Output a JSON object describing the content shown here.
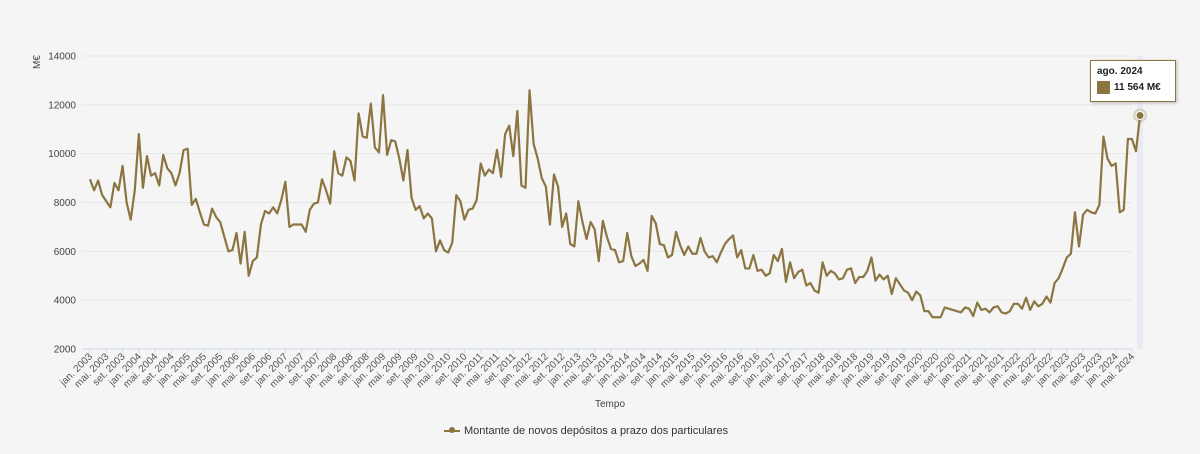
{
  "chart_data": {
    "type": "line",
    "ylabel": "M€",
    "xlabel": "Tempo",
    "ylim": [
      2000,
      14000
    ],
    "yticks": [
      2000,
      4000,
      6000,
      8000,
      10000,
      12000,
      14000
    ],
    "ytick_labels": [
      "2000",
      "4000",
      "6000",
      "8000",
      "10000",
      "12000",
      "14000"
    ],
    "x_start": "2003-01",
    "x_end": "2024-08",
    "xtick_labels": [
      "jan. 2003",
      "mai. 2003",
      "set. 2003",
      "jan. 2004",
      "mai. 2004",
      "set. 2004",
      "jan. 2005",
      "mai. 2005",
      "set. 2005",
      "jan. 2006",
      "mai. 2006",
      "set. 2006",
      "jan. 2007",
      "mai. 2007",
      "set. 2007",
      "jan. 2008",
      "mai. 2008",
      "set. 2008",
      "jan. 2009",
      "mai. 2009",
      "set. 2009",
      "jan. 2010",
      "mai. 2010",
      "set. 2010",
      "jan. 2011",
      "mai. 2011",
      "set. 2011",
      "jan. 2012",
      "mai. 2012",
      "set. 2012",
      "jan. 2013",
      "mai. 2013",
      "set. 2013",
      "jan. 2014",
      "mai. 2014",
      "set. 2014",
      "jan. 2015",
      "mai. 2015",
      "set. 2015",
      "jan. 2016",
      "mai. 2016",
      "set. 2016",
      "jan. 2017",
      "mai. 2017",
      "set. 2017",
      "jan. 2018",
      "mai. 2018",
      "set. 2018",
      "jan. 2019",
      "mai. 2019",
      "set. 2019",
      "jan. 2020",
      "mai. 2020",
      "set. 2020",
      "jan. 2021",
      "mai. 2021",
      "set. 2021",
      "jan. 2022",
      "mai. 2022",
      "set. 2022",
      "jan. 2023",
      "mai. 2023",
      "set. 2023",
      "jan. 2024",
      "mai. 2024"
    ],
    "grid": true,
    "legend_position": "bottom-center",
    "series": [
      {
        "name": "Montante de novos depósitos a prazo dos particulares",
        "color": "#8b7540",
        "values": [
          8950,
          8500,
          8900,
          8300,
          8050,
          7800,
          8800,
          8500,
          9500,
          8000,
          7300,
          8500,
          10800,
          8600,
          9900,
          9100,
          9200,
          8700,
          9950,
          9400,
          9200,
          8700,
          9200,
          10150,
          10200,
          7900,
          8150,
          7600,
          7100,
          7050,
          7750,
          7400,
          7200,
          6600,
          6000,
          6050,
          6750,
          5500,
          6800,
          5000,
          5600,
          5750,
          7100,
          7650,
          7550,
          7800,
          7550,
          8100,
          8850,
          7000,
          7100,
          7100,
          7100,
          6800,
          7700,
          7950,
          8000,
          8950,
          8500,
          7950,
          10100,
          9200,
          9100,
          9850,
          9700,
          8900,
          11650,
          10700,
          10650,
          12050,
          10250,
          10050,
          12400,
          9950,
          10550,
          10500,
          9800,
          8900,
          10150,
          8200,
          7700,
          7850,
          7350,
          7550,
          7350,
          6000,
          6450,
          6050,
          5950,
          6350,
          8300,
          8050,
          7300,
          7700,
          7750,
          8100,
          9600,
          9100,
          9350,
          9200,
          10150,
          9050,
          10800,
          11150,
          9900,
          11750,
          8700,
          8600,
          12600,
          10400,
          9800,
          9000,
          8650,
          7100,
          9150,
          8650,
          7000,
          7550,
          6300,
          6200,
          8050,
          7200,
          6500,
          7200,
          6900,
          5600,
          7250,
          6600,
          6100,
          6050,
          5550,
          5600,
          6750,
          5800,
          5400,
          5500,
          5650,
          5200,
          7450,
          7150,
          6300,
          6250,
          5750,
          5850,
          6800,
          6250,
          5850,
          6200,
          5900,
          5900,
          6550,
          6000,
          5750,
          5800,
          5550,
          5950,
          6300,
          6500,
          6650,
          5750,
          6050,
          5300,
          5300,
          5850,
          5200,
          5250,
          5000,
          5100,
          5850,
          5600,
          6100,
          4750,
          5550,
          4900,
          5150,
          5250,
          4600,
          4700,
          4400,
          4300,
          5550,
          5000,
          5200,
          5100,
          4850,
          4900,
          5250,
          5300,
          4700,
          4950,
          4950,
          5200,
          5750,
          4800,
          5050,
          4850,
          5000,
          4250,
          4900,
          4650,
          4400,
          4300,
          4000,
          4350,
          4200,
          3550,
          3550,
          3300,
          3300,
          3300,
          3700,
          3650,
          3600,
          3550,
          3500,
          3700,
          3650,
          3350,
          3900,
          3600,
          3650,
          3500,
          3700,
          3750,
          3500,
          3450,
          3550,
          3850,
          3850,
          3650,
          4100,
          3600,
          3950,
          3750,
          3850,
          4150,
          3900,
          4700,
          4900,
          5300,
          5750,
          5900,
          7600,
          6200,
          7500,
          7700,
          7600,
          7550,
          7900,
          10700,
          9800,
          9500,
          9600,
          7600,
          7700,
          10600,
          10600,
          10100,
          11564
        ]
      }
    ],
    "tooltip": {
      "date": "ago. 2024",
      "value": "11 564 M€"
    }
  }
}
